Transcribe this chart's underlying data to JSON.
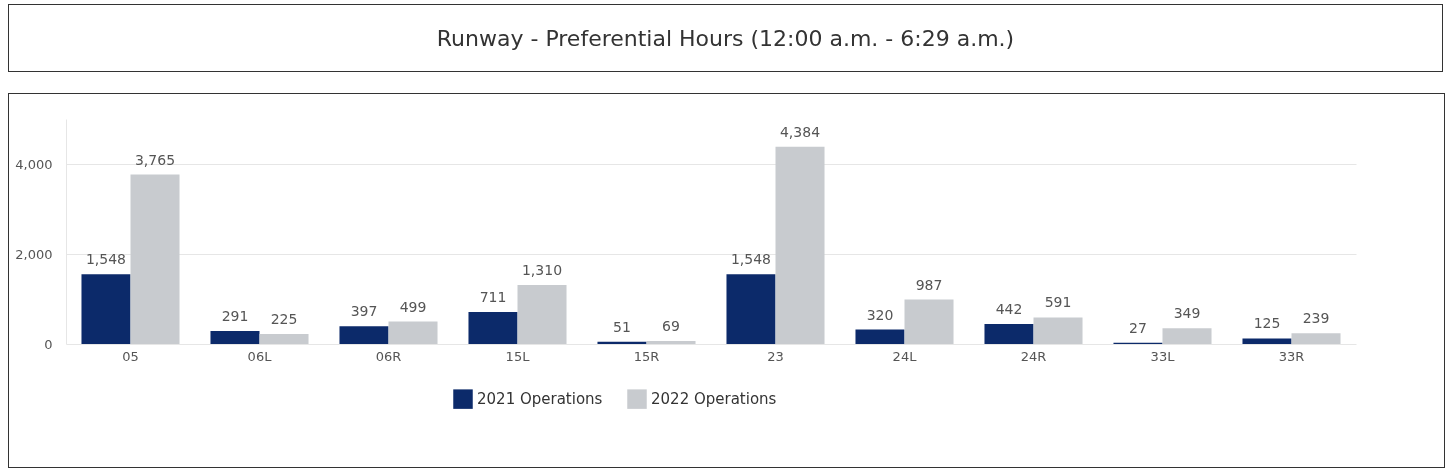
{
  "chart_data": {
    "type": "bar",
    "title": "Runway - Preferential Hours (12:00 a.m. - 6:29 a.m.)",
    "categories": [
      "05",
      "06L",
      "06R",
      "15L",
      "15R",
      "23",
      "24L",
      "24R",
      "33L",
      "33R"
    ],
    "series": [
      {
        "name": "2021 Operations",
        "color": "#0c2a6a",
        "values": [
          1548,
          291,
          397,
          711,
          51,
          1548,
          320,
          442,
          27,
          125
        ],
        "value_labels": [
          "1,548",
          "291",
          "397",
          "711",
          "51",
          "1,548",
          "320",
          "442",
          "27",
          "125"
        ]
      },
      {
        "name": "2022 Operations",
        "color": "#c8cbcf",
        "values": [
          3765,
          225,
          499,
          1310,
          69,
          4384,
          987,
          591,
          349,
          239
        ],
        "value_labels": [
          "3,765",
          "225",
          "499",
          "1,310",
          "69",
          "4,384",
          "987",
          "591",
          "349",
          "239"
        ]
      }
    ],
    "ylim": [
      0,
      5000
    ],
    "yticks": [
      0,
      {
        "value": 2000,
        "label": "2,000"
      },
      {
        "value": 4000,
        "label": "4,000"
      }
    ],
    "grid": "y",
    "legend": "bottom"
  }
}
